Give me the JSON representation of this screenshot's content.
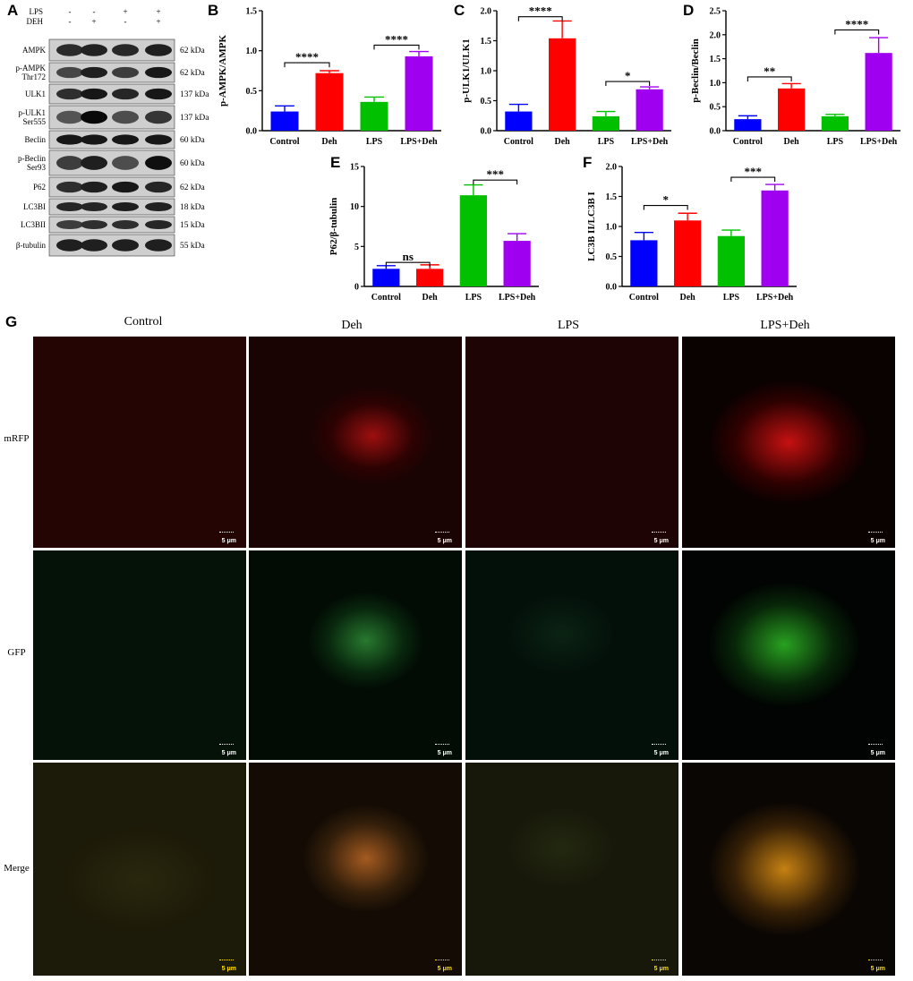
{
  "panels": {
    "A": "A",
    "B": "B",
    "C": "C",
    "D": "D",
    "E": "E",
    "F": "F",
    "G": "G"
  },
  "western_blot": {
    "treatments": [
      {
        "name": "LPS",
        "values": [
          "-",
          "-",
          "+",
          "+"
        ]
      },
      {
        "name": "DEH",
        "values": [
          "-",
          "+",
          "-",
          "+"
        ]
      }
    ],
    "rows": [
      {
        "label": "AMPK",
        "label2": "",
        "kda": "62 kDa",
        "intensity": [
          0.72,
          0.78,
          0.74,
          0.8
        ]
      },
      {
        "label": "p-AMPK",
        "label2": "Thr172",
        "kda": "62 kDa",
        "intensity": [
          0.55,
          0.8,
          0.6,
          0.85
        ]
      },
      {
        "label": "ULK1",
        "label2": "",
        "kda": "137 kDa",
        "intensity": [
          0.7,
          0.85,
          0.75,
          0.85
        ]
      },
      {
        "label": "p-ULK1",
        "label2": "Ser555",
        "kda": "137 kDa",
        "intensity": [
          0.45,
          0.95,
          0.5,
          0.65
        ]
      },
      {
        "label": "Beclin",
        "label2": "",
        "kda": "60 kDa",
        "intensity": [
          0.85,
          0.85,
          0.85,
          0.85
        ]
      },
      {
        "label": "p-Beclin",
        "label2": "Ser93",
        "kda": "60 kDa",
        "intensity": [
          0.6,
          0.8,
          0.5,
          0.9
        ]
      },
      {
        "label": "P62",
        "label2": "",
        "kda": "62 kDa",
        "intensity": [
          0.7,
          0.8,
          0.85,
          0.75
        ]
      },
      {
        "label": "LC3BI",
        "label2": "",
        "kda": "18 kDa",
        "intensity": [
          0.75,
          0.75,
          0.8,
          0.78
        ]
      },
      {
        "label": "LC3BII",
        "label2": "",
        "kda": "15 kDa",
        "intensity": [
          0.6,
          0.7,
          0.7,
          0.75
        ]
      },
      {
        "label": "β-tubulin",
        "label2": "",
        "kda": "55 kDa",
        "intensity": [
          0.8,
          0.8,
          0.8,
          0.8
        ]
      }
    ]
  },
  "colors": {
    "Control": "#0000ff",
    "Deh": "#ff0000",
    "LPS": "#00c000",
    "LPS+Deh": "#a000f0"
  },
  "chart_data": [
    {
      "id": "B",
      "type": "bar",
      "categories": [
        "Control",
        "Deh",
        "LPS",
        "LPS+Deh"
      ],
      "values": [
        0.24,
        0.72,
        0.36,
        0.93
      ],
      "errors": [
        0.07,
        0.03,
        0.06,
        0.06
      ],
      "ylabel": "p-AMPK/AMPK",
      "ylim": [
        0,
        1.5
      ],
      "yticks": [
        "0.0",
        "0.5",
        "1.0",
        "1.5"
      ],
      "sig": [
        {
          "from": 0,
          "to": 1,
          "label": "****",
          "y": 0.85
        },
        {
          "from": 2,
          "to": 3,
          "label": "****",
          "y": 1.07
        }
      ]
    },
    {
      "id": "C",
      "type": "bar",
      "categories": [
        "Control",
        "Deh",
        "LPS",
        "LPS+Deh"
      ],
      "values": [
        0.32,
        1.54,
        0.24,
        0.69
      ],
      "errors": [
        0.12,
        0.29,
        0.08,
        0.04
      ],
      "ylabel": "p-ULK1/ULK1",
      "ylim": [
        0,
        2.0
      ],
      "yticks": [
        "0.0",
        "0.5",
        "1.0",
        "1.5",
        "2.0"
      ],
      "sig": [
        {
          "from": 0,
          "to": 1,
          "label": "****",
          "y": 1.9
        },
        {
          "from": 2,
          "to": 3,
          "label": "*",
          "y": 0.82
        }
      ]
    },
    {
      "id": "D",
      "type": "bar",
      "categories": [
        "Control",
        "Deh",
        "LPS",
        "LPS+Deh"
      ],
      "values": [
        0.24,
        0.88,
        0.3,
        1.62
      ],
      "errors": [
        0.07,
        0.1,
        0.04,
        0.32
      ],
      "ylabel": "p-Beclin/Beclin",
      "ylim": [
        0,
        2.5
      ],
      "yticks": [
        "0.0",
        "0.5",
        "1.0",
        "1.5",
        "2.0",
        "2.5"
      ],
      "sig": [
        {
          "from": 0,
          "to": 1,
          "label": "**",
          "y": 1.12
        },
        {
          "from": 2,
          "to": 3,
          "label": "****",
          "y": 2.1
        }
      ]
    },
    {
      "id": "E",
      "type": "bar",
      "categories": [
        "Control",
        "Deh",
        "LPS",
        "LPS+Deh"
      ],
      "values": [
        2.2,
        2.2,
        11.4,
        5.7
      ],
      "errors": [
        0.4,
        0.5,
        1.3,
        0.9
      ],
      "ylabel": "P62/β-tubulin",
      "ylim": [
        0,
        15
      ],
      "yticks": [
        "0",
        "5",
        "10",
        "15"
      ],
      "sig": [
        {
          "from": 0,
          "to": 1,
          "label": "ns",
          "y": 3.0
        },
        {
          "from": 2,
          "to": 3,
          "label": "***",
          "y": 13.3
        }
      ]
    },
    {
      "id": "F",
      "type": "bar",
      "categories": [
        "Control",
        "Deh",
        "LPS",
        "LPS+Deh"
      ],
      "values": [
        0.77,
        1.1,
        0.84,
        1.6
      ],
      "errors": [
        0.13,
        0.12,
        0.1,
        0.1
      ],
      "ylabel": "LC3B II/LC3B I",
      "ylim": [
        0,
        2.0
      ],
      "yticks": [
        "0.0",
        "0.5",
        "1.0",
        "1.5",
        "2.0"
      ],
      "sig": [
        {
          "from": 0,
          "to": 1,
          "label": "*",
          "y": 1.35
        },
        {
          "from": 2,
          "to": 3,
          "label": "***",
          "y": 1.82
        }
      ]
    }
  ],
  "microscopy": {
    "columns": [
      "Control",
      "Deh",
      "LPS",
      "LPS+Deh"
    ],
    "rows": [
      "mRFP",
      "GFP",
      "Merge"
    ],
    "scale_label": "5 μm"
  }
}
